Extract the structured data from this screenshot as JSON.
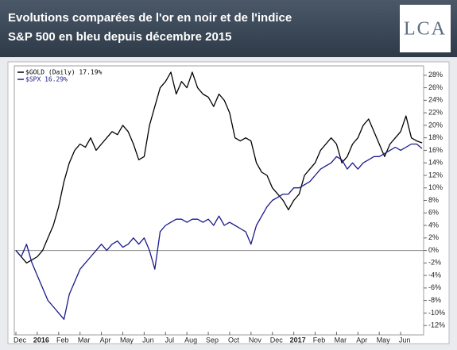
{
  "chart_data": {
    "type": "line",
    "title_lines": [
      "Evolutions comparées de l'or en noir et de l'indice",
      "S&P 500 en bleu depuis décembre 2015"
    ],
    "logo": "LCA",
    "x": [
      0,
      0.25,
      0.5,
      0.75,
      1,
      1.25,
      1.5,
      1.75,
      2,
      2.25,
      2.5,
      2.75,
      3,
      3.25,
      3.5,
      3.75,
      4,
      4.25,
      4.5,
      4.75,
      5,
      5.25,
      5.5,
      5.75,
      6,
      6.25,
      6.5,
      6.75,
      7,
      7.25,
      7.5,
      7.75,
      8,
      8.25,
      8.5,
      8.75,
      9,
      9.25,
      9.5,
      9.75,
      10,
      10.25,
      10.5,
      10.75,
      11,
      11.25,
      11.5,
      11.75,
      12,
      12.25,
      12.5,
      12.75,
      13,
      13.25,
      13.5,
      13.75,
      14,
      14.25,
      14.5,
      14.75,
      15,
      15.25,
      15.5,
      15.75,
      16,
      16.25,
      16.5,
      16.75,
      17,
      17.25,
      17.5,
      17.75,
      18,
      18.25,
      18.5,
      18.75,
      19
    ],
    "series": [
      {
        "name": "$GOLD (Daily) 17.19%",
        "color": "#000000",
        "values": [
          0,
          -1,
          -2,
          -1.5,
          -1,
          0,
          2,
          4,
          7,
          11,
          14,
          16,
          17,
          16.5,
          18,
          16,
          17,
          18,
          19,
          18.5,
          20,
          19,
          17,
          14.5,
          15,
          20,
          23,
          26,
          27,
          28.5,
          25,
          27,
          26,
          28.5,
          26,
          25,
          24.5,
          23,
          25,
          24,
          22,
          18,
          17.5,
          18,
          17.5,
          14,
          12.5,
          12,
          10,
          9,
          8,
          6.5,
          8,
          9,
          12,
          13,
          14,
          16,
          17,
          18,
          17,
          14,
          15,
          17,
          18,
          20,
          21,
          19,
          17,
          15,
          17,
          18,
          19,
          21.5,
          18,
          17.5,
          17.19
        ]
      },
      {
        "name": "$SPX 16.29%",
        "color": "#1a1a8c",
        "values": [
          0,
          -1,
          1,
          -2,
          -4,
          -6,
          -8,
          -9,
          -10,
          -11,
          -7,
          -5,
          -3,
          -2,
          -1,
          0,
          1,
          0,
          1,
          1.5,
          0.5,
          1,
          2,
          1,
          2,
          0,
          -3,
          3,
          4,
          4.5,
          5,
          5,
          4.5,
          5,
          5,
          4.5,
          5,
          4,
          5.5,
          4,
          4.5,
          4,
          3.5,
          3,
          1,
          4,
          5.5,
          7,
          8,
          8.5,
          9,
          9,
          10,
          10,
          10.5,
          11,
          12,
          13,
          13.5,
          14,
          15,
          14.5,
          13,
          14,
          13,
          14,
          14.5,
          15,
          15,
          15.5,
          16,
          16.5,
          16,
          16.5,
          17,
          17,
          16.29
        ]
      }
    ],
    "xlim": [
      0,
      19
    ],
    "xticks": [
      {
        "value": 0,
        "label": "Dec"
      },
      {
        "value": 1,
        "label": "2016"
      },
      {
        "value": 2,
        "label": "Feb"
      },
      {
        "value": 3,
        "label": "Mar"
      },
      {
        "value": 4,
        "label": "Apr"
      },
      {
        "value": 5,
        "label": "May"
      },
      {
        "value": 6,
        "label": "Jun"
      },
      {
        "value": 7,
        "label": "Jul"
      },
      {
        "value": 8,
        "label": "Aug"
      },
      {
        "value": 9,
        "label": "Sep"
      },
      {
        "value": 10,
        "label": "Oct"
      },
      {
        "value": 11,
        "label": "Nov"
      },
      {
        "value": 12,
        "label": "Dec"
      },
      {
        "value": 13,
        "label": "2017"
      },
      {
        "value": 14,
        "label": "Feb"
      },
      {
        "value": 15,
        "label": "Mar"
      },
      {
        "value": 16,
        "label": "Apr"
      },
      {
        "value": 17,
        "label": "May"
      },
      {
        "value": 18,
        "label": "Jun"
      }
    ],
    "ylim": [
      -13.5,
      29.5
    ],
    "yticks": [
      {
        "value": -12,
        "label": "-12%"
      },
      {
        "value": -10,
        "label": "-10%"
      },
      {
        "value": -8,
        "label": "-8%"
      },
      {
        "value": -6,
        "label": "-6%"
      },
      {
        "value": -4,
        "label": "-4%"
      },
      {
        "value": -2,
        "label": "-2%"
      },
      {
        "value": 0,
        "label": "0%"
      },
      {
        "value": 2,
        "label": "2%"
      },
      {
        "value": 4,
        "label": "4%"
      },
      {
        "value": 6,
        "label": "6%"
      },
      {
        "value": 8,
        "label": "8%"
      },
      {
        "value": 10,
        "label": "10%"
      },
      {
        "value": 12,
        "label": "12%"
      },
      {
        "value": 14,
        "label": "14%"
      },
      {
        "value": 16,
        "label": "16%"
      },
      {
        "value": 18,
        "label": "18%"
      },
      {
        "value": 20,
        "label": "20%"
      },
      {
        "value": 22,
        "label": "22%"
      },
      {
        "value": 24,
        "label": "24%"
      },
      {
        "value": 26,
        "label": "26%"
      },
      {
        "value": 28,
        "label": "28%"
      }
    ],
    "y_axis_side": "right",
    "zero_line": true,
    "legend": "top-left"
  }
}
